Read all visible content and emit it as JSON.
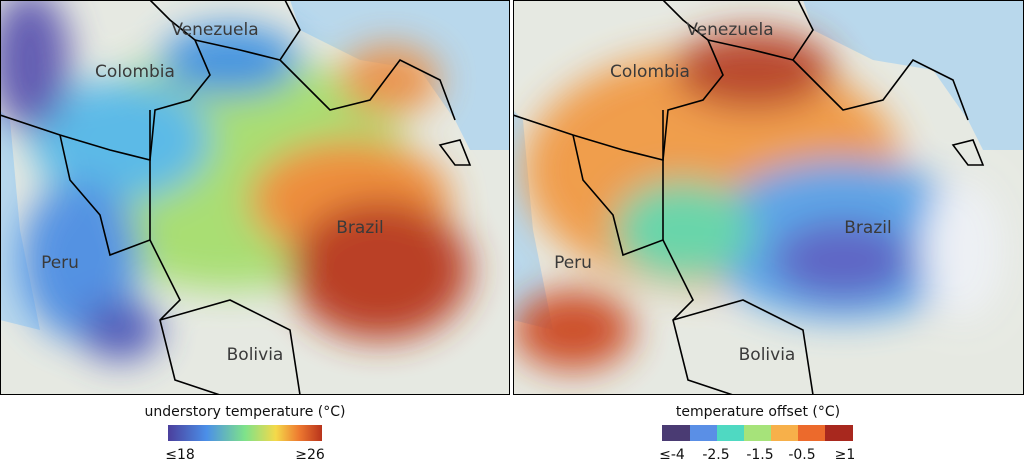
{
  "panels": [
    {
      "labels": [
        "Venezuela",
        "Colombia",
        "Peru",
        "Brazil",
        "Bolivia"
      ],
      "legend": {
        "title": "understory temperature (°C)",
        "ticks": [
          "≤18",
          "≥26"
        ]
      }
    },
    {
      "labels": [
        "Venezuela",
        "Colombia",
        "Peru",
        "Brazil",
        "Bolivia"
      ],
      "legend": {
        "title": "temperature offset (°C)",
        "ticks": [
          "≤-4",
          "-2.5",
          "-1.5",
          "-0.5",
          "≥1"
        ]
      }
    }
  ]
}
